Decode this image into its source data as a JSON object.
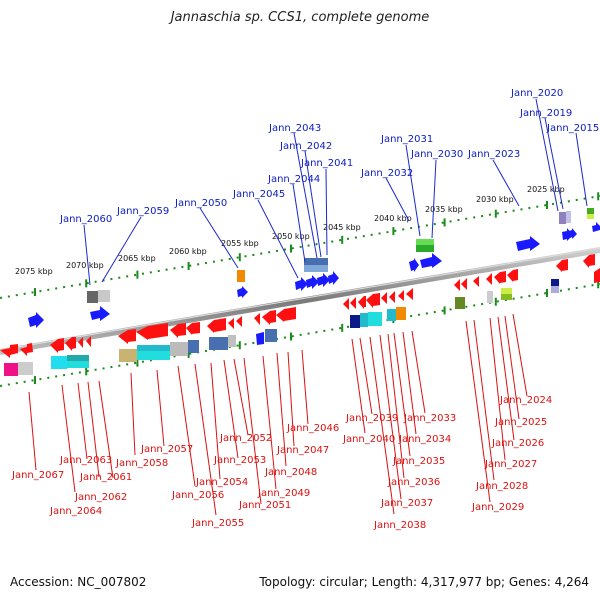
{
  "title": "Jannaschia sp. CCS1, complete genome",
  "footer": {
    "accession": "Accession: NC_007802",
    "stats": "Topology: circular; Length: 4,317,977 bp; Genes: 4,264"
  },
  "scale_ticks": [
    "2075 kbp",
    "2070 kbp",
    "2065 kbp",
    "2060 kbp",
    "2055 kbp",
    "2050 kbp",
    "2045 kbp",
    "2040 kbp",
    "2035 kbp",
    "2030 kbp",
    "2025 kbp"
  ],
  "top_genes": [
    "Jann_2060",
    "Jann_2059",
    "Jann_2050",
    "Jann_2045",
    "Jann_2044",
    "Jann_2043",
    "Jann_2042",
    "Jann_2041",
    "Jann_2032",
    "Jann_2031",
    "Jann_2030",
    "Jann_2023",
    "Jann_2020",
    "Jann_2019",
    "Jann_2015"
  ],
  "bottom_genes": [
    "Jann_2067",
    "Jann_2064",
    "Jann_2063",
    "Jann_2062",
    "Jann_2061",
    "Jann_2058",
    "Jann_2057",
    "Jann_2056",
    "Jann_2055",
    "Jann_2054",
    "Jann_2053",
    "Jann_2052",
    "Jann_2051",
    "Jann_2049",
    "Jann_2048",
    "Jann_2047",
    "Jann_2046",
    "Jann_2040",
    "Jann_2039",
    "Jann_2038",
    "Jann_2037",
    "Jann_2036",
    "Jann_2035",
    "Jann_2034",
    "Jann_2033",
    "Jann_2029",
    "Jann_2028",
    "Jann_2027",
    "Jann_2026",
    "Jann_2025",
    "Jann_2024"
  ],
  "colors": {
    "forward_gene": "#1a1aff",
    "reverse_gene": "#ff1010",
    "top_label": "#1020c0",
    "bottom_label": "#dd1010",
    "backbone": "#888888",
    "tick": "#1a8a1a"
  }
}
